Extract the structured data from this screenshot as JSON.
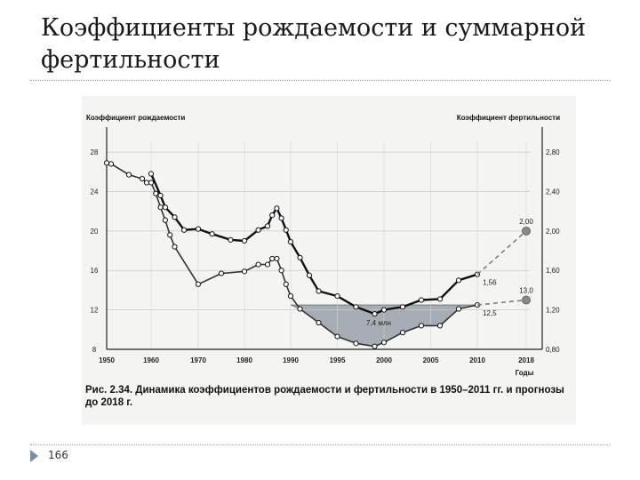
{
  "slide": {
    "title": "Коэффициенты рождаемости и суммарной фертильности",
    "page_number": "166"
  },
  "chart_data": {
    "type": "line",
    "left_axis_title": "Коэффициент рождаемости",
    "right_axis_title": "Коэффициент фертильности",
    "x_axis_title": "Годы",
    "x_ticks": [
      1950,
      1960,
      1970,
      1980,
      1990,
      1995,
      2000,
      2005,
      2010,
      2018
    ],
    "left_ticks": [
      8,
      12,
      16,
      20,
      24,
      28
    ],
    "right_ticks": [
      "0,80",
      "1,20",
      "1,60",
      "2,00",
      "2,40",
      "2,80"
    ],
    "left_ylim": [
      8,
      29
    ],
    "right_ylim": [
      0.8,
      2.9
    ],
    "grid": true,
    "series": [
      {
        "name": "Коэффициент рождаемости",
        "style": "solid-thick",
        "points": [
          [
            1950,
            26.9
          ],
          [
            1951,
            26.8
          ],
          [
            1955,
            25.7
          ],
          [
            1958,
            25.3
          ],
          [
            1959,
            24.9
          ],
          [
            1960,
            24.9
          ],
          [
            1961,
            23.8
          ],
          [
            1962,
            22.4
          ],
          [
            1963,
            21.1
          ],
          [
            1964,
            19.6
          ],
          [
            1965,
            18.4
          ],
          [
            1970,
            14.6
          ],
          [
            1975,
            15.7
          ],
          [
            1980,
            15.9
          ],
          [
            1983,
            16.6
          ],
          [
            1985,
            16.6
          ],
          [
            1986,
            17.2
          ],
          [
            1987,
            17.2
          ],
          [
            1988,
            16.0
          ],
          [
            1989,
            14.6
          ],
          [
            1990,
            13.4
          ],
          [
            1991,
            12.1
          ],
          [
            1993,
            10.7
          ],
          [
            1995,
            9.3
          ],
          [
            1997,
            8.6
          ],
          [
            1999,
            8.3
          ],
          [
            2000,
            8.7
          ],
          [
            2002,
            9.7
          ],
          [
            2004,
            10.4
          ],
          [
            2006,
            10.4
          ],
          [
            2008,
            12.1
          ],
          [
            2010,
            12.5
          ]
        ]
      },
      {
        "name": "Коэффициент фертильности",
        "style": "solid-thin",
        "points": [
          [
            1960,
            2.58
          ],
          [
            1962,
            2.36
          ],
          [
            1963,
            2.24
          ],
          [
            1965,
            2.14
          ],
          [
            1967,
            2.01
          ],
          [
            1970,
            2.02
          ],
          [
            1973,
            1.97
          ],
          [
            1977,
            1.91
          ],
          [
            1980,
            1.9
          ],
          [
            1983,
            2.01
          ],
          [
            1985,
            2.05
          ],
          [
            1986,
            2.16
          ],
          [
            1987,
            2.23
          ],
          [
            1988,
            2.13
          ],
          [
            1989,
            2.01
          ],
          [
            1990,
            1.89
          ],
          [
            1991,
            1.73
          ],
          [
            1992,
            1.55
          ],
          [
            1993,
            1.39
          ],
          [
            1995,
            1.34
          ],
          [
            1997,
            1.23
          ],
          [
            1999,
            1.16
          ],
          [
            2000,
            1.2
          ],
          [
            2002,
            1.23
          ],
          [
            2004,
            1.3
          ],
          [
            2006,
            1.31
          ],
          [
            2008,
            1.5
          ],
          [
            2010,
            1.56
          ]
        ]
      }
    ],
    "forecasts": [
      {
        "from": [
          2010,
          1.56
        ],
        "to": [
          2018,
          2.0
        ],
        "label": "2,00",
        "axis": "right"
      },
      {
        "from": [
          2010,
          12.5
        ],
        "to": [
          2018,
          13.0
        ],
        "label": "13,0",
        "axis": "left"
      }
    ],
    "annotations": [
      {
        "text": "1,56",
        "x": 2010,
        "y": 1.56,
        "axis": "right"
      },
      {
        "text": "12,5",
        "x": 2010,
        "y": 12.5,
        "axis": "left"
      },
      {
        "text": "7,4 млн",
        "x": 2000,
        "y": 10.6,
        "axis": "left"
      }
    ],
    "shaded_region": {
      "from_year": 1990,
      "to_year": 2010,
      "level": 12.5,
      "color": "#a7adb4"
    },
    "caption": "Рис. 2.34. Динамика коэффициентов рождаемости и фертильности в 1950–2011 гг. и прогнозы до 2018 г."
  }
}
